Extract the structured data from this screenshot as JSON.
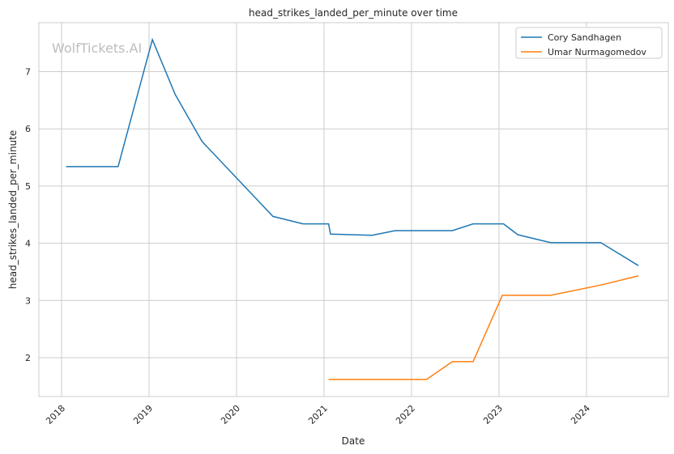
{
  "chart_data": {
    "type": "line",
    "title": "head_strikes_landed_per_minute over time",
    "xlabel": "Date",
    "ylabel": "head_strikes_landed_per_minute",
    "watermark": "WolfTickets.AI",
    "x_ticks": [
      "2018",
      "2019",
      "2020",
      "2021",
      "2022",
      "2023",
      "2024"
    ],
    "y_ticks": [
      2,
      3,
      4,
      5,
      6,
      7
    ],
    "xlim": [
      "2017-08",
      "2024-11"
    ],
    "ylim": [
      1.33,
      7.85
    ],
    "grid": true,
    "legend_position": "top-right",
    "series": [
      {
        "name": "Cory Sandhagen",
        "color": "#1f77b4",
        "points": [
          [
            "2018-01-20",
            5.34
          ],
          [
            "2018-08-25",
            5.34
          ],
          [
            "2019-01-15",
            7.56
          ],
          [
            "2019-04-20",
            6.6
          ],
          [
            "2019-08-10",
            5.78
          ],
          [
            "2020-06-01",
            4.47
          ],
          [
            "2020-10-05",
            4.34
          ],
          [
            "2021-01-20",
            4.34
          ],
          [
            "2021-01-28",
            4.16
          ],
          [
            "2021-07-20",
            4.14
          ],
          [
            "2021-10-25",
            4.22
          ],
          [
            "2022-06-20",
            4.22
          ],
          [
            "2022-09-15",
            4.34
          ],
          [
            "2023-01-20",
            4.34
          ],
          [
            "2023-03-20",
            4.15
          ],
          [
            "2023-08-05",
            4.01
          ],
          [
            "2024-03-01",
            4.01
          ],
          [
            "2024-08-05",
            3.61
          ]
        ]
      },
      {
        "name": "Umar Nurmagomedov",
        "color": "#ff7f0e",
        "points": [
          [
            "2021-01-20",
            1.62
          ],
          [
            "2022-03-05",
            1.62
          ],
          [
            "2022-06-20",
            1.93
          ],
          [
            "2022-09-15",
            1.93
          ],
          [
            "2023-01-15",
            3.09
          ],
          [
            "2023-08-05",
            3.09
          ],
          [
            "2024-03-01",
            3.27
          ],
          [
            "2024-08-05",
            3.43
          ]
        ]
      }
    ]
  }
}
